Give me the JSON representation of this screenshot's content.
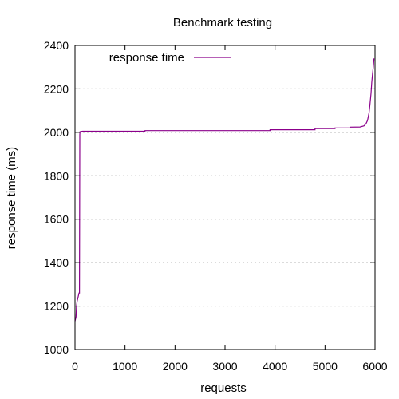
{
  "chart_data": {
    "type": "line",
    "title": "Benchmark testing",
    "xlabel": "requests",
    "ylabel": "response time (ms)",
    "xlim": [
      0,
      6000
    ],
    "ylim": [
      1000,
      2400
    ],
    "x_ticks": [
      0,
      1000,
      2000,
      3000,
      4000,
      5000,
      6000
    ],
    "y_ticks": [
      1000,
      1200,
      1400,
      1600,
      1800,
      2000,
      2200,
      2400
    ],
    "grid": "horizontal dotted",
    "legend_position": "top-left",
    "series": [
      {
        "name": "response time",
        "color": "#8b008b",
        "points": [
          [
            0,
            1130
          ],
          [
            20,
            1150
          ],
          [
            30,
            1200
          ],
          [
            45,
            1225
          ],
          [
            60,
            1240
          ],
          [
            80,
            1260
          ],
          [
            90,
            1260
          ],
          [
            95,
            1990
          ],
          [
            100,
            2003
          ],
          [
            150,
            2005
          ],
          [
            600,
            2005
          ],
          [
            1400,
            2005
          ],
          [
            1400,
            2008
          ],
          [
            2500,
            2008
          ],
          [
            3900,
            2008
          ],
          [
            3900,
            2012
          ],
          [
            4800,
            2012
          ],
          [
            4800,
            2017
          ],
          [
            5200,
            2017
          ],
          [
            5200,
            2020
          ],
          [
            5500,
            2020
          ],
          [
            5500,
            2024
          ],
          [
            5700,
            2025
          ],
          [
            5780,
            2030
          ],
          [
            5820,
            2040
          ],
          [
            5850,
            2055
          ],
          [
            5880,
            2090
          ],
          [
            5900,
            2130
          ],
          [
            5920,
            2180
          ],
          [
            5935,
            2230
          ],
          [
            5950,
            2270
          ],
          [
            5965,
            2300
          ],
          [
            5980,
            2340
          ]
        ]
      }
    ]
  }
}
